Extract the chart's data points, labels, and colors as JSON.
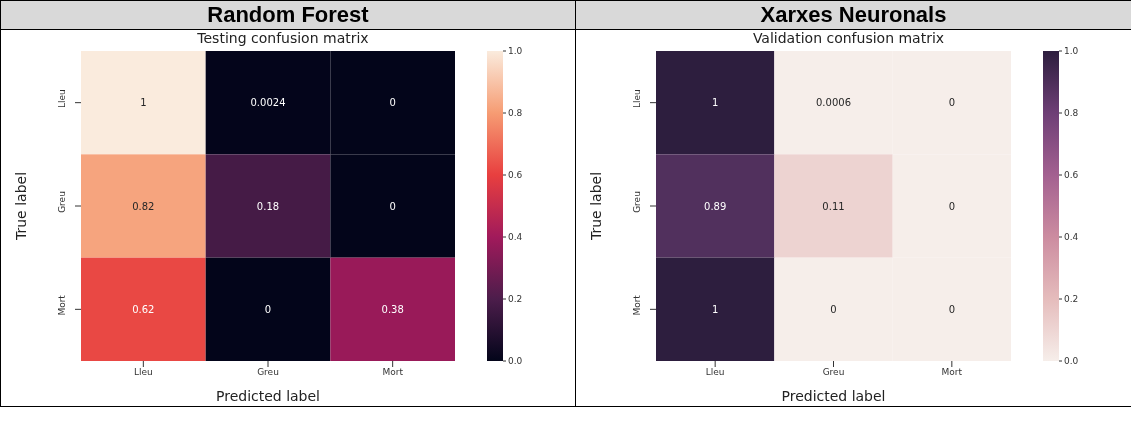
{
  "chart_data": [
    {
      "type": "heatmap",
      "title": "Random Forest",
      "subtitle": "Testing confusion matrix",
      "xlabel": "Predicted label",
      "ylabel": "True label",
      "categories": [
        "Lleu",
        "Greu",
        "Mort"
      ],
      "y_categories": [
        "Lleu",
        "Greu",
        "Mort"
      ],
      "cells": [
        [
          1,
          0.0024,
          0
        ],
        [
          0.82,
          0.18,
          0
        ],
        [
          0.62,
          0,
          0.38
        ]
      ],
      "data_labels": true,
      "clim": [
        0,
        1
      ],
      "cticks": [
        {
          "value": 0,
          "label": "0.0"
        },
        {
          "value": 0.2,
          "label": "0.2"
        },
        {
          "value": 0.4,
          "label": "0.4"
        },
        {
          "value": 0.6,
          "label": "0.6"
        },
        {
          "value": 0.8,
          "label": "0.8"
        },
        {
          "value": 1,
          "label": "1.0"
        }
      ],
      "colors": [
        "#03051a",
        "#4c1d4b",
        "#a11a5b",
        "#e83f3f",
        "#f69c73",
        "#faebdd"
      ]
    },
    {
      "type": "heatmap",
      "title": "Xarxes Neuronals",
      "subtitle": "Validation confusion matrix",
      "xlabel": "Predicted label",
      "ylabel": "True label",
      "categories": [
        "Lleu",
        "Greu",
        "Mort"
      ],
      "y_categories": [
        "Lleu",
        "Greu",
        "Mort"
      ],
      "cells": [
        [
          1,
          0.0006,
          0
        ],
        [
          0.89,
          0.11,
          0
        ],
        [
          1,
          0,
          0
        ]
      ],
      "data_labels": true,
      "clim": [
        0,
        1
      ],
      "cticks": [
        {
          "value": 0,
          "label": "0.0"
        },
        {
          "value": 0.2,
          "label": "0.2"
        },
        {
          "value": 0.4,
          "label": "0.4"
        },
        {
          "value": 0.6,
          "label": "0.6"
        },
        {
          "value": 0.8,
          "label": "0.8"
        },
        {
          "value": 1,
          "label": "1.0"
        }
      ],
      "colors": [
        "#f6eeea",
        "#e5bcbc",
        "#cc8ca0",
        "#a36090",
        "#6e3f76",
        "#2d1e3e"
      ]
    }
  ]
}
